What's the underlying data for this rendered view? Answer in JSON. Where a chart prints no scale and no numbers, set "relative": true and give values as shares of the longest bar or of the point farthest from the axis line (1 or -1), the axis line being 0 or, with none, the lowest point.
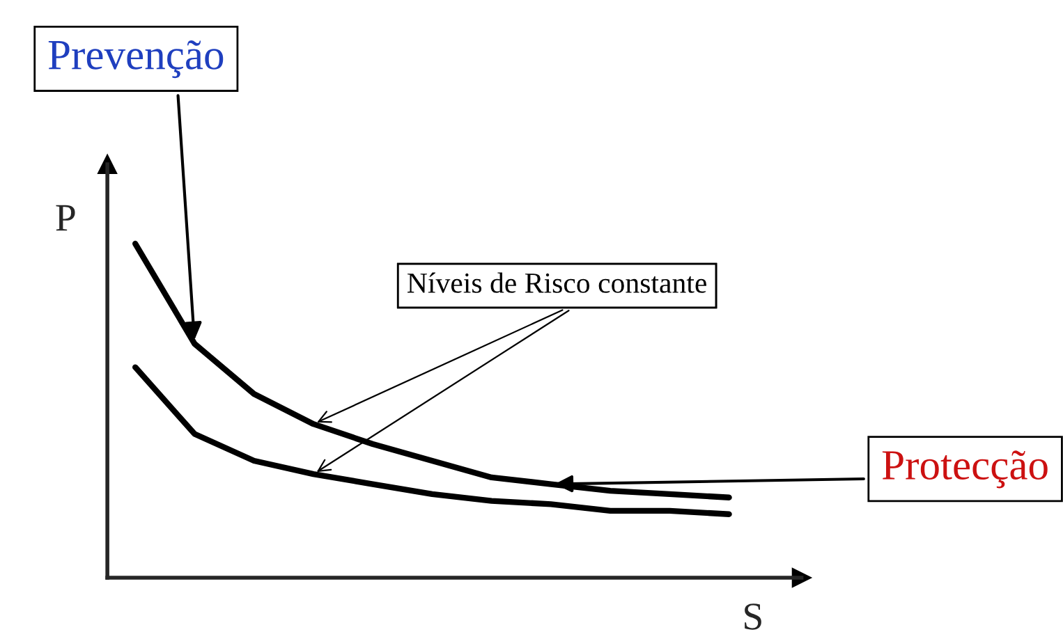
{
  "chart_data": {
    "type": "line",
    "relative": true,
    "xlabel": "S",
    "ylabel": "P",
    "categories": [
      null,
      null,
      null,
      null,
      null,
      null,
      null,
      null,
      null,
      null,
      null
    ],
    "series": [
      {
        "color": "#000000",
        "values": [
          1,
          0.7,
          0.55,
          0.46,
          0.4,
          0.35,
          0.3,
          0.28,
          0.26,
          0.25,
          0.24
        ]
      },
      {
        "color": "#000000",
        "values": [
          0.63,
          0.43,
          0.35,
          0.31,
          0.28,
          0.25,
          0.23,
          0.22,
          0.2,
          0.2,
          0.19
        ]
      }
    ],
    "annotations": [
      "Prevenção",
      "Níveis de Risco constante",
      "Protecção"
    ],
    "legend": false,
    "marker": "none",
    "line_style": "solid"
  }
}
